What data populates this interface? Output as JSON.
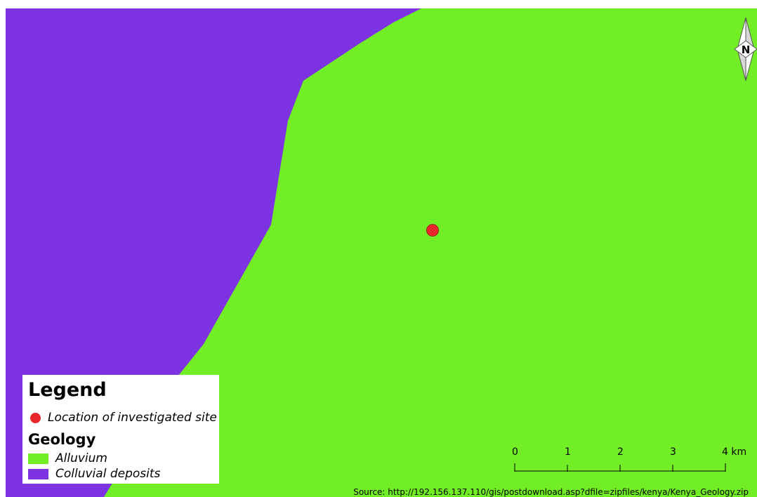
{
  "map": {
    "colors": {
      "alluvium": "#72ee27",
      "colluvial": "#7e33e2",
      "site": "#e8262c",
      "site_stroke": "#8a1a1a"
    }
  },
  "legend": {
    "title": "Legend",
    "site_label": "Location of investigated site",
    "geology_heading": "Geology",
    "items": [
      {
        "label": "Alluvium",
        "color": "#72ee27"
      },
      {
        "label": "Colluvial deposits",
        "color": "#7e33e2"
      }
    ]
  },
  "north_arrow": {
    "label": "N"
  },
  "scale_bar": {
    "ticks": [
      "0",
      "1",
      "2",
      "3",
      "4 km"
    ]
  },
  "source": "Source: http://192.156.137.110/gis/postdownload.asp?dfile=zipfiles/kenya/Kenya_Geology.zip"
}
